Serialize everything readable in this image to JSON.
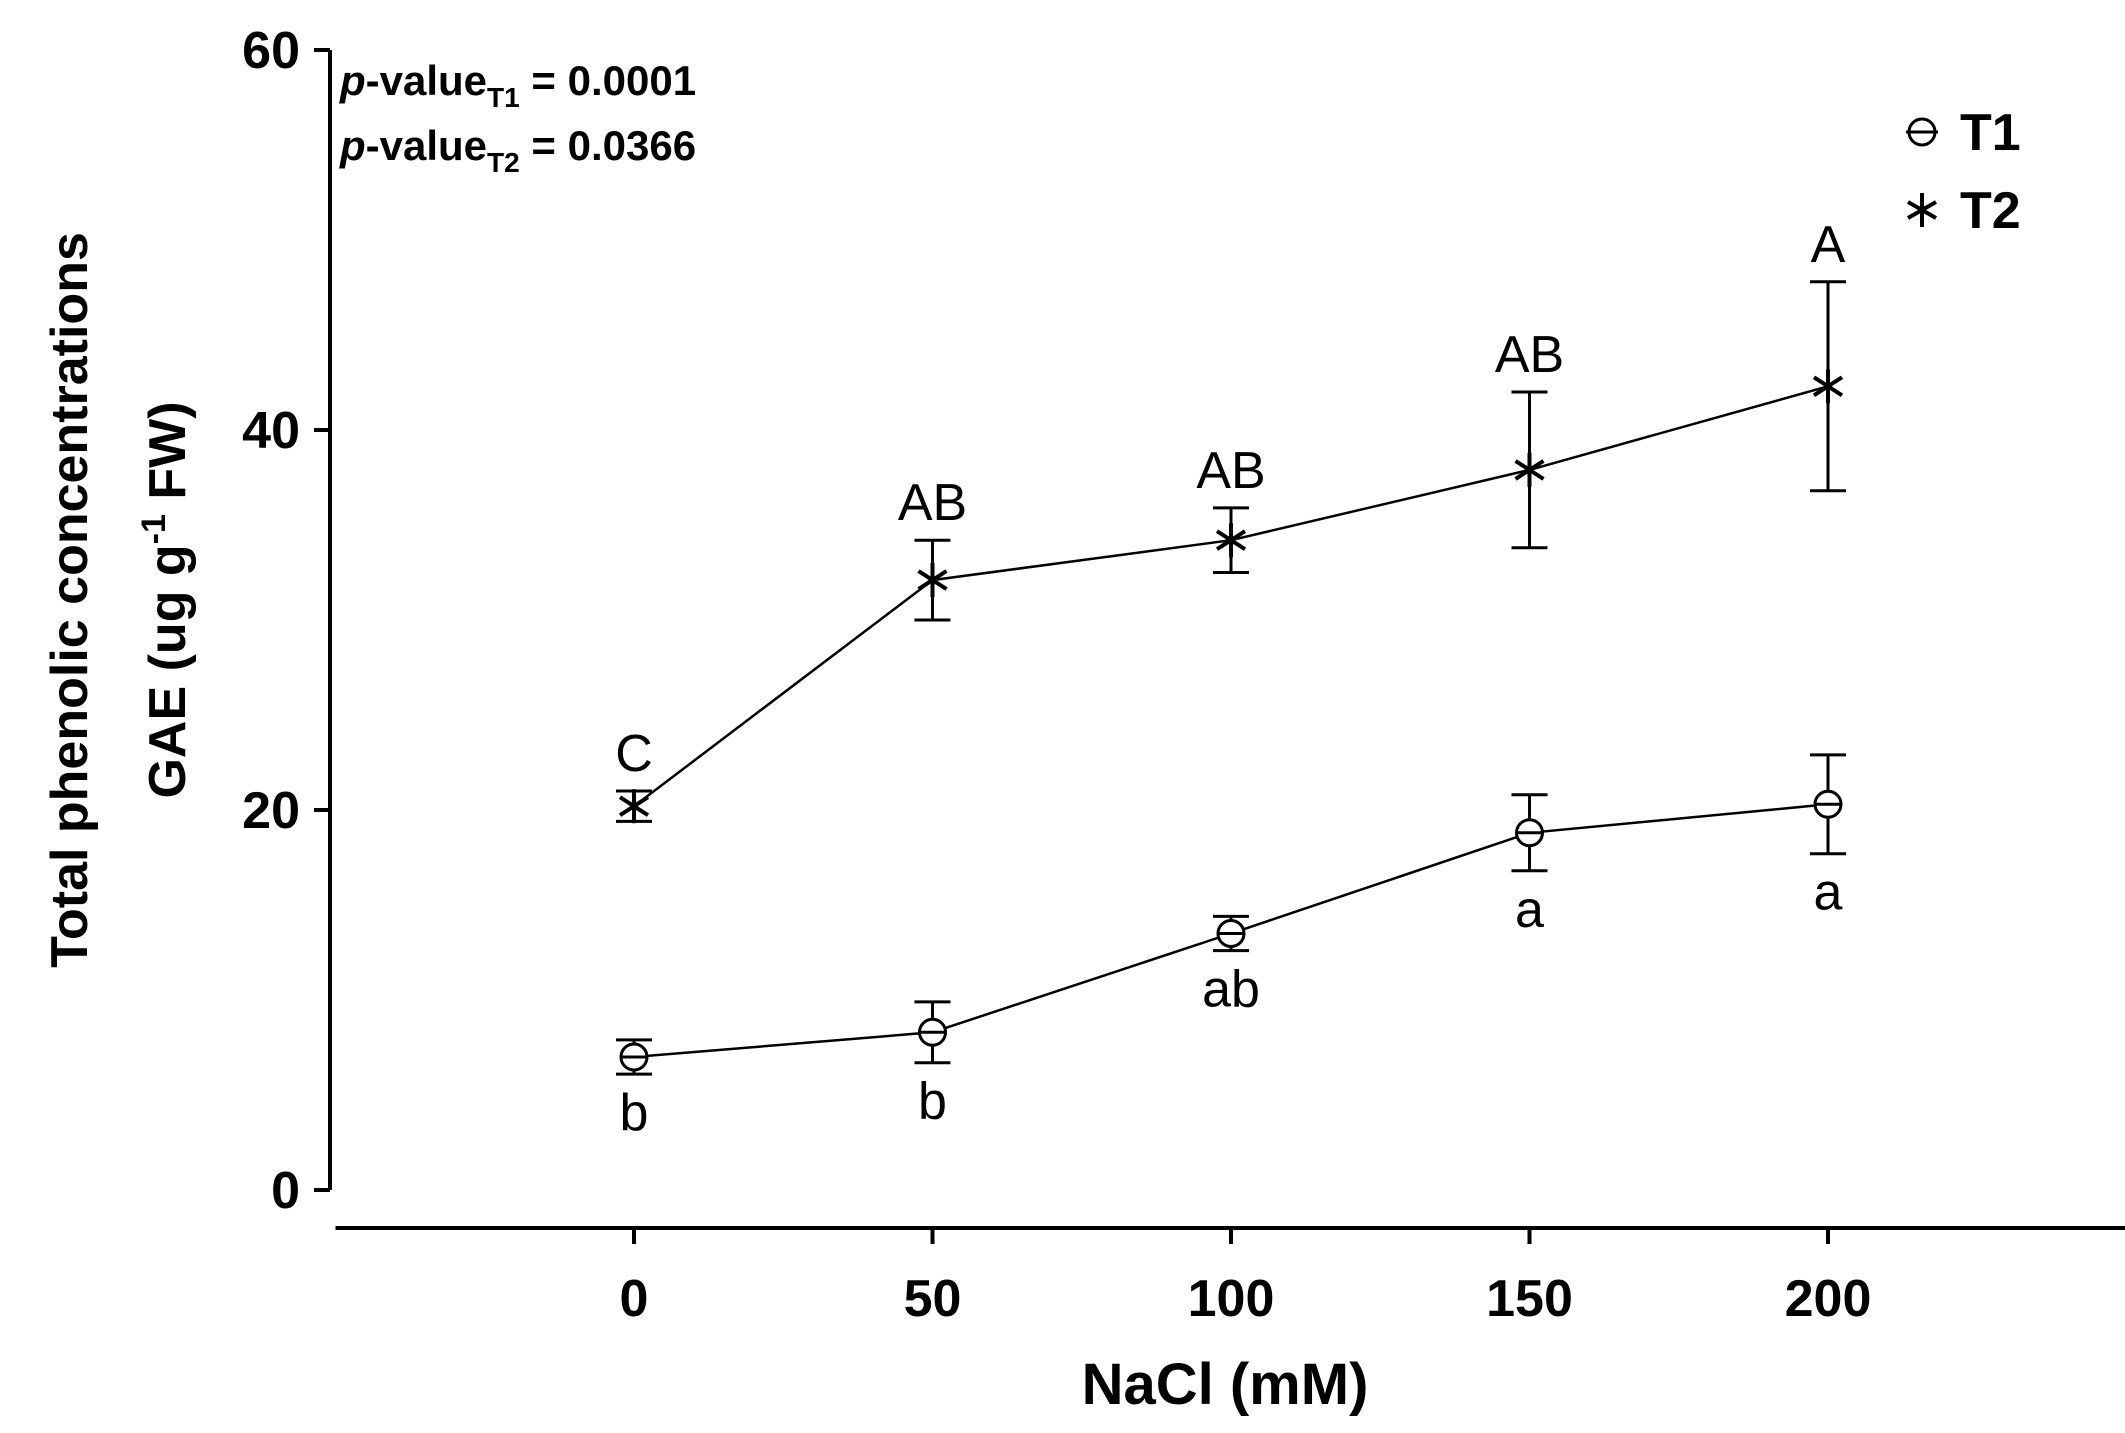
{
  "chart_data": {
    "type": "line",
    "title": "",
    "xlabel": "NaCl (mM)",
    "ylabel_line1": "Total phenolic concentrations",
    "ylabel_line2_prefix": "GAE (ug g",
    "ylabel_line2_sup": "-1",
    "ylabel_line2_suffix": " FW)",
    "x": [
      0,
      50,
      100,
      150,
      200
    ],
    "xlim": [
      -50,
      250
    ],
    "ylim": [
      0,
      60
    ],
    "x_ticks": [
      "0",
      "50",
      "100",
      "150",
      "200"
    ],
    "y_ticks": [
      "0",
      "20",
      "40",
      "60"
    ],
    "series": [
      {
        "name": "T1",
        "marker": "circle",
        "values": [
          7.0,
          8.3,
          13.5,
          18.8,
          20.3
        ],
        "errors": [
          0.9,
          1.6,
          0.9,
          2.0,
          2.6
        ],
        "letters": [
          "b",
          "b",
          "ab",
          "a",
          "a"
        ],
        "letter_position": "below"
      },
      {
        "name": "T2",
        "marker": "asterisk",
        "values": [
          20.2,
          32.1,
          34.2,
          37.9,
          42.3
        ],
        "errors": [
          0.8,
          2.1,
          1.7,
          4.1,
          5.5
        ],
        "letters": [
          "C",
          "AB",
          "AB",
          "AB",
          "A"
        ],
        "letter_position": "above"
      }
    ],
    "annotations": [
      {
        "italic": "p",
        "text": "-value",
        "sub": "T1",
        "value": " = 0.0001"
      },
      {
        "italic": "p",
        "text": "-value",
        "sub": "T2",
        "value": " = 0.0366"
      }
    ],
    "legend": {
      "position": "top-right",
      "entries": [
        "T1",
        "T2"
      ]
    }
  }
}
